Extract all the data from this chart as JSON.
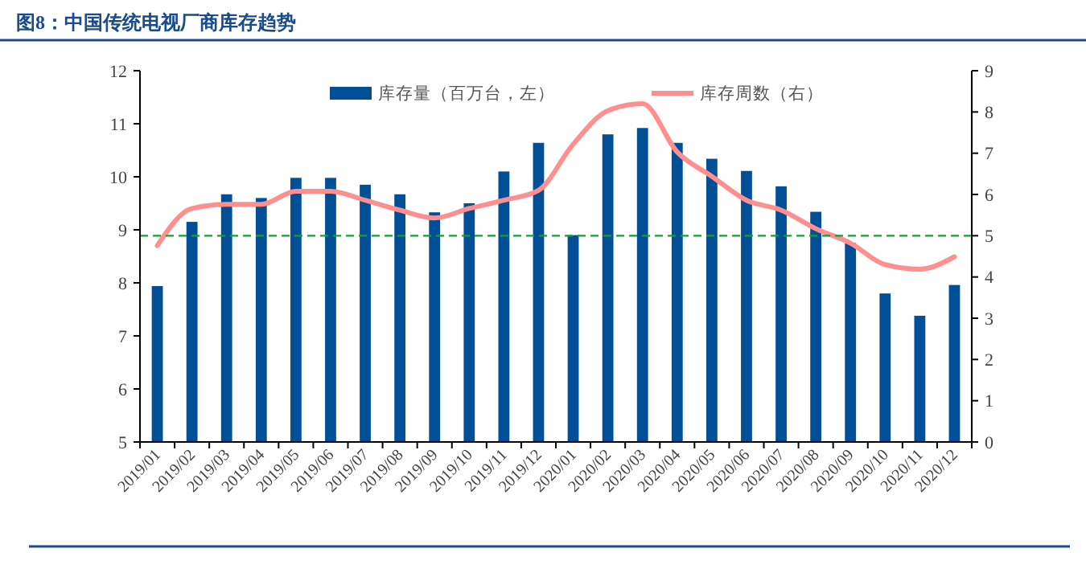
{
  "chart_data": {
    "type": "bar",
    "title": "图8：中国传统电视厂商库存趋势",
    "categories": [
      "2019/01",
      "2019/02",
      "2019/03",
      "2019/04",
      "2019/05",
      "2019/06",
      "2019/07",
      "2019/08",
      "2019/09",
      "2019/10",
      "2019/11",
      "2019/12",
      "2020/01",
      "2020/02",
      "2020/03",
      "2020/04",
      "2020/05",
      "2020/06",
      "2020/07",
      "2020/08",
      "2020/09",
      "2020/10",
      "2020/11",
      "2020/12"
    ],
    "series": [
      {
        "name": "库存量（百万台，左）",
        "color": "#004f97",
        "values": [
          7.94,
          9.15,
          9.67,
          9.6,
          9.98,
          9.98,
          9.85,
          9.67,
          9.33,
          9.5,
          10.1,
          10.64,
          8.9,
          10.8,
          10.92,
          10.64,
          10.34,
          10.11,
          9.82,
          9.34,
          8.75,
          7.8,
          7.38,
          7.96
        ]
      },
      {
        "name": "库存周数（右）",
        "type": "line",
        "axis": "y2",
        "color": "#ff8f8f",
        "values": [
          4.76,
          5.66,
          5.76,
          5.76,
          6.08,
          6.08,
          5.86,
          5.62,
          5.43,
          5.66,
          5.86,
          6.1,
          7.22,
          8.03,
          8.2,
          7.03,
          6.44,
          5.86,
          5.62,
          5.17,
          4.82,
          4.3,
          4.19,
          4.49
        ]
      }
    ],
    "ylim": [
      5,
      12
    ],
    "yticks": [
      5,
      6,
      7,
      8,
      9,
      10,
      11,
      12
    ],
    "y2lim": [
      0,
      9
    ],
    "y2ticks": [
      0,
      1,
      2,
      3,
      4,
      5,
      6,
      7,
      8,
      9
    ],
    "ref_lines": [
      {
        "axis": "y2",
        "value": 5,
        "color": "#1a9a3a",
        "line_style": "dashed"
      }
    ],
    "legend": "top",
    "grid": false,
    "line_style": "solid",
    "marker": "none"
  }
}
